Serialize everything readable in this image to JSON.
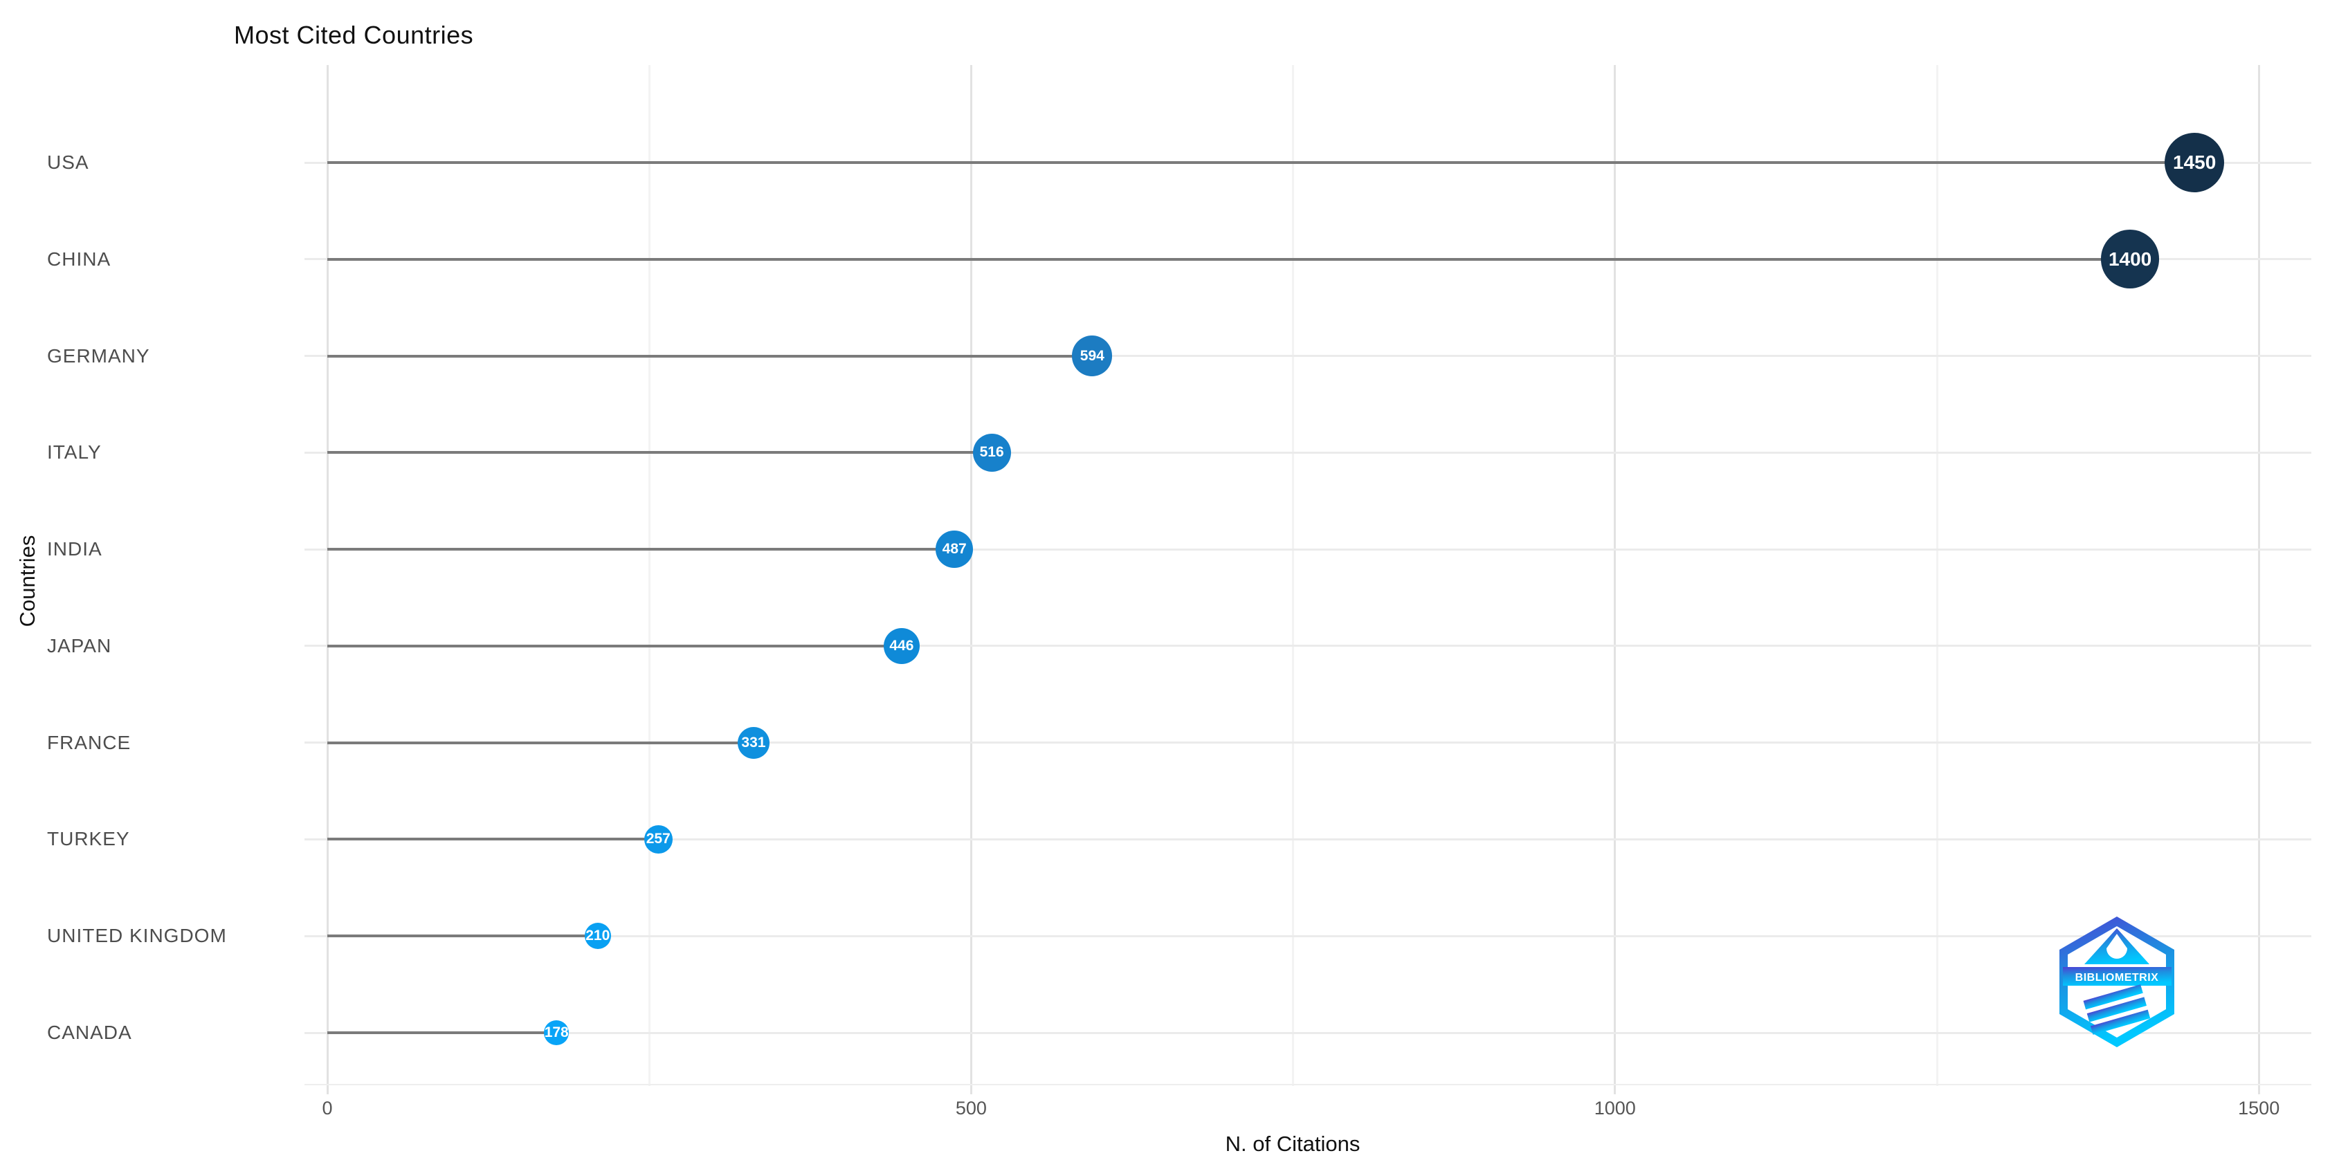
{
  "chart_data": {
    "type": "lollipop",
    "title": "Most Cited Countries",
    "xlabel": "N. of Citations",
    "ylabel": "Countries",
    "categories": [
      "USA",
      "CHINA",
      "GERMANY",
      "ITALY",
      "INDIA",
      "JAPAN",
      "FRANCE",
      "TURKEY",
      "UNITED KINGDOM",
      "CANADA"
    ],
    "values": [
      1450,
      1400,
      594,
      516,
      487,
      446,
      331,
      257,
      210,
      178
    ],
    "point_colors": [
      "#14304A",
      "#153450",
      "#1C7CC2",
      "#1781CB",
      "#1385D1",
      "#0F8AD8",
      "#1090DE",
      "#0C99EA",
      "#09A0F2",
      "#08A4F7"
    ],
    "stem_color": "#7b7b7b",
    "xlim": [
      0,
      1540
    ],
    "x_major_ticks": [
      0,
      500,
      1000,
      1500
    ],
    "x_minor_ticks": [
      250,
      750,
      1250
    ],
    "grid": true,
    "legend": "none",
    "point_label_color": "#ffffff"
  },
  "logo": {
    "text": "BIBLIOMETRIX",
    "gradient_top": "#4b43d4",
    "gradient_mid": "#1e8fe0",
    "gradient_bottom": "#00c8ff"
  }
}
